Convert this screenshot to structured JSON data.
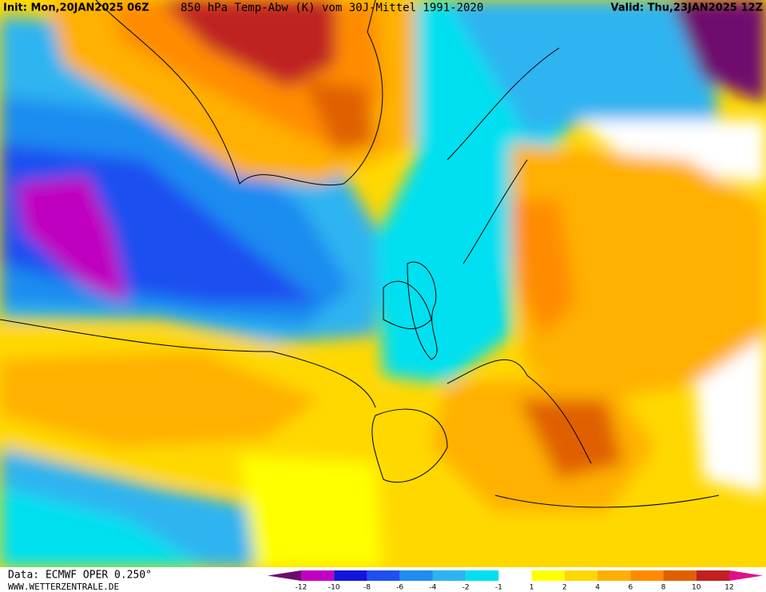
{
  "header": {
    "init": "Init: Mon,20JAN2025 06Z",
    "title": "850 hPa Temp-Abw (K) vom 30J-Mittel 1991-2020",
    "valid": "Valid: Thu,23JAN2025 12Z"
  },
  "footer": {
    "source": "Data: ECMWF OPER 0.250°",
    "site": "WWW.WETTERZENTRALE.DE"
  },
  "colorbar": {
    "labels": [
      -12,
      -10,
      -8,
      -6,
      -4,
      -2,
      -1,
      1,
      2,
      4,
      6,
      8,
      10,
      12
    ],
    "colors": [
      "#c000c0",
      "#1414dc",
      "#1e50f0",
      "#1e8cf0",
      "#2db4f0",
      "#00e0f0",
      "#ffffff",
      "#ffff00",
      "#ffd800",
      "#ffb000",
      "#ff8c00",
      "#e06000",
      "#c02020"
    ],
    "low_color": "#6e0a6e",
    "high_color": "#e0108a"
  }
}
